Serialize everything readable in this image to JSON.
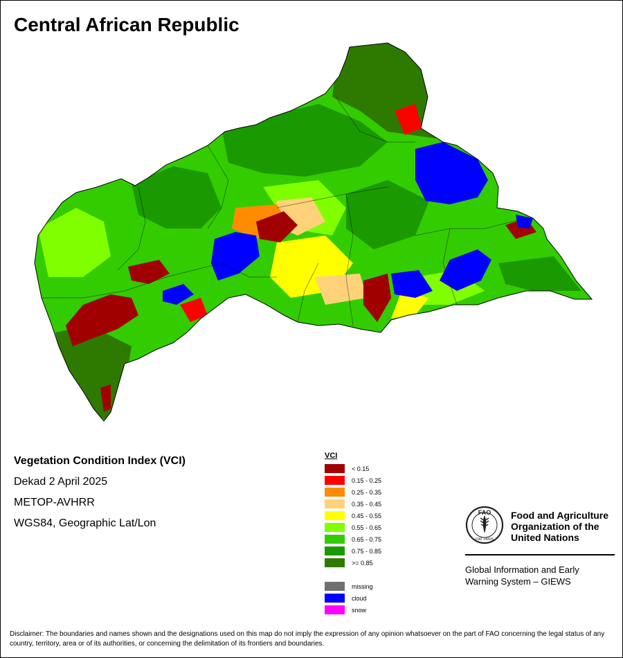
{
  "map": {
    "title": "Central African Republic"
  },
  "info": {
    "product": "Vegetation Condition Index (VCI)",
    "period": "Dekad 2 April 2025",
    "sensor": "METOP-AVHRR",
    "projection": "WGS84, Geographic Lat/Lon"
  },
  "legend": {
    "title": "VCI",
    "classes": [
      {
        "label": "< 0.15",
        "color": "#a00000"
      },
      {
        "label": "0.15 - 0.25",
        "color": "#ff0000"
      },
      {
        "label": "0.25 - 0.35",
        "color": "#ff8c00"
      },
      {
        "label": "0.35 - 0.45",
        "color": "#ffd27a"
      },
      {
        "label": "0.45 - 0.55",
        "color": "#ffff00"
      },
      {
        "label": "0.55 - 0.65",
        "color": "#7fff00"
      },
      {
        "label": "0.65 - 0.75",
        "color": "#33cc00"
      },
      {
        "label": "0.75 - 0.85",
        "color": "#1a9a00"
      },
      {
        "label": ">= 0.85",
        "color": "#2e7a00"
      }
    ],
    "other": [
      {
        "label": "missing",
        "color": "#707070"
      },
      {
        "label": "cloud",
        "color": "#0000ff"
      },
      {
        "label": "snow",
        "color": "#ff00ff"
      }
    ]
  },
  "org": {
    "name_line1": "Food and Agriculture",
    "name_line2": "Organization of the",
    "name_line3": "United Nations",
    "logo_text": "FAO",
    "logo_motto": "FIAT PANIS",
    "system_line1": "Global Information and Early",
    "system_line2": "Warning System – GIEWS"
  },
  "disclaimer": "Disclaimer: The boundaries and names shown and the designations used on this map do not imply the expression of any opinion whatsoever on the part of FAO concerning the legal status of any country, territory, area or of its authorities, or concerning the delimitation of its frontiers and boundaries."
}
